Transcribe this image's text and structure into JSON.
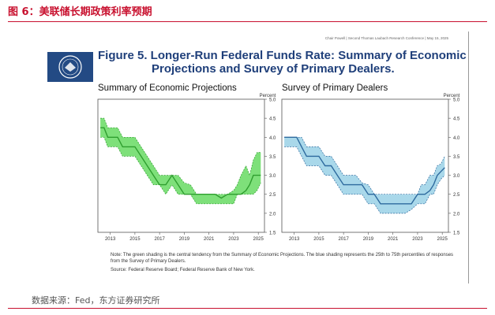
{
  "header": {
    "figure_title": "图 6：美联储长期政策利率预期",
    "source": "数据来源：Fed，东方证券研究所"
  },
  "slide": {
    "credit": "Chair Powell | Second Thomas Laubach Research Conference | May 15, 2025",
    "title_line1": "Figure 5. Longer-Run Federal Funds Rate: Summary of Economic",
    "title_line2": "Projections and Survey of Primary Dealers.",
    "note": "Note: The green shading is the central tendency from the Summary of Economic Projections. The blue shading represents the 25th to 75th percentiles of responses from the Survey of Primary Dealers.",
    "source_note": "Source: Federal Reserve Board; Federal Reserve Bank of New York."
  },
  "chart_data": [
    {
      "type": "area",
      "title": "Summary of Economic Projections",
      "ylabel": "Percent",
      "ylim": [
        1.5,
        5.0
      ],
      "yticks": [
        "1.5",
        "2.0",
        "2.5",
        "3.0",
        "3.5",
        "4.0",
        "4.5",
        "5.0"
      ],
      "xlim": [
        2012,
        2025.5
      ],
      "xticks": [
        "2013",
        "2015",
        "2017",
        "2019",
        "2021",
        "2023",
        "2025"
      ],
      "colors": {
        "fill": "#7ee07a",
        "line": "#2f9e2f",
        "band_edge": "#2f9e2f"
      },
      "x": [
        2012.2,
        2012.5,
        2012.8,
        2013.2,
        2013.6,
        2014.0,
        2014.5,
        2015.0,
        2015.5,
        2016.0,
        2016.5,
        2017.0,
        2017.5,
        2018.0,
        2018.5,
        2019.0,
        2019.5,
        2020.0,
        2020.5,
        2021.0,
        2021.5,
        2022.0,
        2022.5,
        2023.0,
        2023.3,
        2023.6,
        2024.0,
        2024.3,
        2024.6,
        2024.9,
        2025.2
      ],
      "median": [
        4.25,
        4.25,
        4.0,
        4.0,
        4.0,
        3.75,
        3.75,
        3.75,
        3.5,
        3.25,
        3.0,
        2.75,
        2.75,
        3.0,
        2.75,
        2.5,
        2.5,
        2.5,
        2.5,
        2.5,
        2.5,
        2.4,
        2.5,
        2.5,
        2.5,
        2.5,
        2.6,
        2.75,
        3.0,
        3.0,
        3.0
      ],
      "upper": [
        4.5,
        4.5,
        4.25,
        4.25,
        4.25,
        4.0,
        4.0,
        4.0,
        3.75,
        3.5,
        3.25,
        3.0,
        3.0,
        3.0,
        3.0,
        2.8,
        2.75,
        2.5,
        2.5,
        2.5,
        2.5,
        2.5,
        2.5,
        2.6,
        2.75,
        3.0,
        3.25,
        3.0,
        3.4,
        3.6,
        3.6
      ],
      "lower": [
        4.0,
        4.0,
        3.75,
        3.75,
        3.75,
        3.5,
        3.5,
        3.5,
        3.25,
        3.0,
        2.75,
        2.75,
        2.5,
        2.75,
        2.5,
        2.5,
        2.5,
        2.25,
        2.25,
        2.25,
        2.25,
        2.25,
        2.25,
        2.25,
        2.5,
        2.5,
        2.5,
        2.5,
        2.5,
        2.6,
        2.8
      ]
    },
    {
      "type": "area",
      "title": "Survey of Primary Dealers",
      "ylabel": "Percent",
      "ylim": [
        1.5,
        5.0
      ],
      "yticks": [
        "1.5",
        "2.0",
        "2.5",
        "3.0",
        "3.5",
        "4.0",
        "4.5",
        "5.0"
      ],
      "xlim": [
        2012,
        2025.5
      ],
      "xticks": [
        "2013",
        "2015",
        "2017",
        "2019",
        "2021",
        "2023",
        "2025"
      ],
      "colors": {
        "fill": "#a9d8ea",
        "line": "#2e6a9e",
        "band_edge": "#2e6a9e"
      },
      "x": [
        2012.2,
        2012.5,
        2012.8,
        2013.2,
        2013.6,
        2014.0,
        2014.5,
        2015.0,
        2015.5,
        2016.0,
        2016.5,
        2017.0,
        2017.5,
        2018.0,
        2018.5,
        2019.0,
        2019.5,
        2020.0,
        2020.5,
        2021.0,
        2021.5,
        2022.0,
        2022.5,
        2023.0,
        2023.3,
        2023.6,
        2024.0,
        2024.3,
        2024.6,
        2024.9,
        2025.2
      ],
      "median": [
        4.0,
        4.0,
        4.0,
        4.0,
        3.75,
        3.5,
        3.5,
        3.5,
        3.25,
        3.25,
        3.0,
        2.75,
        2.75,
        2.75,
        2.75,
        2.5,
        2.5,
        2.25,
        2.25,
        2.25,
        2.25,
        2.25,
        2.25,
        2.5,
        2.5,
        2.5,
        2.6,
        2.75,
        3.0,
        3.1,
        3.2
      ],
      "upper": [
        4.0,
        4.0,
        4.0,
        4.0,
        4.0,
        3.75,
        3.75,
        3.75,
        3.5,
        3.5,
        3.25,
        3.0,
        3.0,
        3.0,
        2.8,
        2.75,
        2.5,
        2.5,
        2.5,
        2.5,
        2.5,
        2.5,
        2.5,
        2.5,
        2.75,
        2.75,
        3.0,
        3.0,
        3.25,
        3.3,
        3.5
      ],
      "lower": [
        3.75,
        3.75,
        3.75,
        3.75,
        3.5,
        3.25,
        3.25,
        3.25,
        3.0,
        3.0,
        2.75,
        2.5,
        2.5,
        2.5,
        2.5,
        2.25,
        2.25,
        2.0,
        2.0,
        2.0,
        2.0,
        2.0,
        2.1,
        2.25,
        2.25,
        2.25,
        2.5,
        2.5,
        2.75,
        2.9,
        3.0
      ]
    }
  ]
}
